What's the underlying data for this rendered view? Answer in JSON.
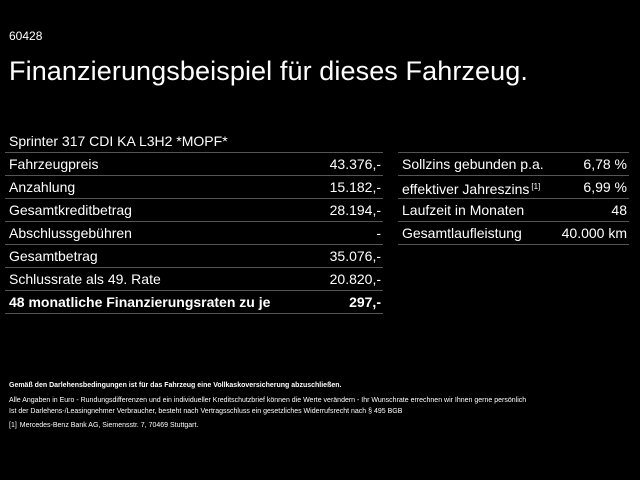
{
  "code": "60428",
  "title": "Finanzierungsbeispiel für dieses Fahrzeug.",
  "vehicle": "Sprinter 317 CDI KA L3H2 *MOPF*",
  "left_table": [
    {
      "label": "Fahrzeugpreis",
      "value": "43.376,-"
    },
    {
      "label": "Anzahlung",
      "value": "15.182,-"
    },
    {
      "label": "Gesamtkreditbetrag",
      "value": "28.194,-"
    },
    {
      "label": "Abschlussgebühren",
      "value": "-"
    },
    {
      "label": "Gesamtbetrag",
      "value": "35.076,-"
    },
    {
      "label": "Schlussrate als 49. Rate",
      "value": "20.820,-"
    },
    {
      "label": "48 monatliche Finanzierungsraten zu je",
      "value": "297,-"
    }
  ],
  "right_table": [
    {
      "label": "Sollzins gebunden p.a.",
      "value": "6,78 %"
    },
    {
      "label": "effektiver Jahreszins",
      "sup": "[1]",
      "value": "6,99 %"
    },
    {
      "label": "Laufzeit in Monaten",
      "value": "48"
    },
    {
      "label": "Gesamtlaufleistung",
      "value": "40.000 km"
    }
  ],
  "disclaimer": {
    "bold_line": "Gemäß den Darlehensbedingungen ist für das Fahrzeug eine Vollkaskoversicherung abzuschließen.",
    "line1": "Alle Angaben in Euro - Rundungsdifferenzen und ein individueller Kreditschutzbrief können die Werte verändern - Ihr Wunschrate errechnen wir Ihnen gerne persönlich",
    "line2": "Ist der Darlehens-/Leasingnehmer Verbraucher, besteht nach Vertragsschluss ein gesetzliches Widerrufsrecht nach § 495 BGB"
  },
  "footnote": {
    "mark": "[1]",
    "text": "Mercedes-Benz Bank AG, Siemensstr. 7, 70469 Stuttgart."
  },
  "colors": {
    "background": "#000000",
    "text": "#ffffff",
    "divider": "#555555"
  }
}
